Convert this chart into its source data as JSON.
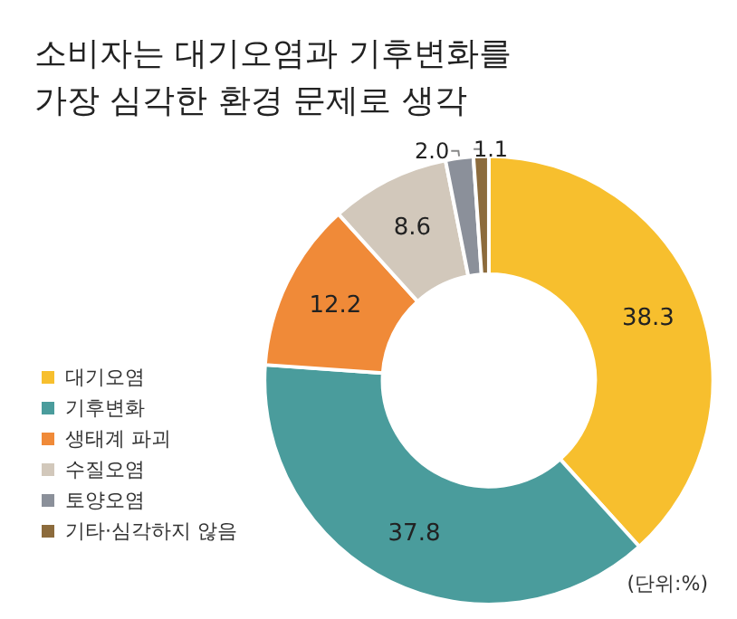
{
  "chart_data": {
    "type": "donut",
    "title": "소비자는 대기오염과 기후변화를 가장 심각한 환경 문제로 생각",
    "categories": [
      "대기오염",
      "기후변화",
      "생태계 파괴",
      "수질오염",
      "토양오염",
      "기타·심각하지 않음"
    ],
    "values": [
      38.3,
      37.8,
      12.2,
      8.6,
      2.0,
      1.1
    ],
    "value_labels": [
      "38.3",
      "37.8",
      "12.2",
      "8.6",
      "2.0",
      "1.1"
    ],
    "colors": [
      "#f7bf2e",
      "#4a9c9c",
      "#f08a38",
      "#d2c8bb",
      "#8b909a",
      "#8c6b3c"
    ],
    "legend": "bottom left",
    "annotations": [
      "(단위:%)"
    ]
  }
}
